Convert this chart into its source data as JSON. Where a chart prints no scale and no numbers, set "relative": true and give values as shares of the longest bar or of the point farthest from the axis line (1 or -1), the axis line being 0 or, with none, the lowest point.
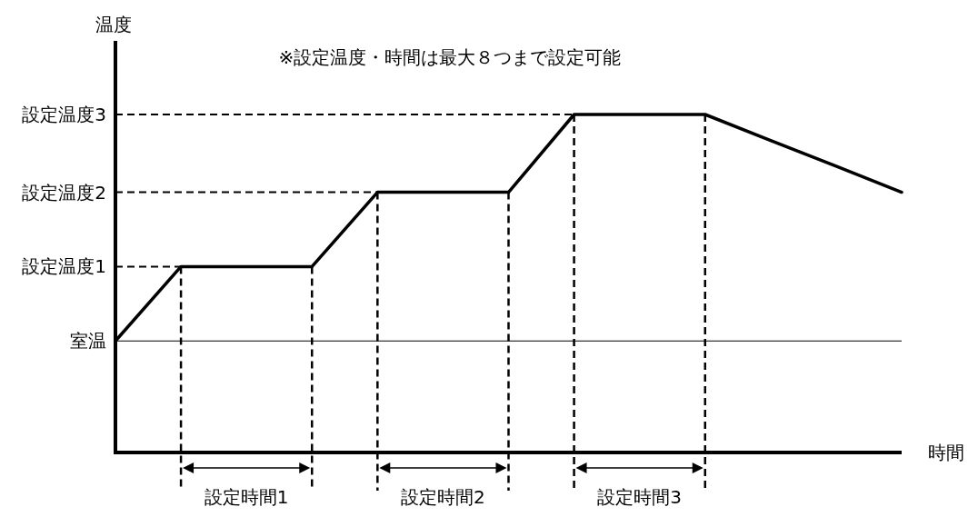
{
  "chart_data": {
    "type": "line",
    "relative": true,
    "xlabel": "時間",
    "ylabel": "温度",
    "grid": true,
    "annotations": [
      "※設定温度・時間は最大８つまで設定可能",
      "設定時間1",
      "設定時間2",
      "設定時間3"
    ],
    "categories": [
      null,
      null,
      null,
      null,
      null,
      null,
      null,
      null,
      null,
      null,
      null,
      null,
      null
    ],
    "values": [
      0.33,
      0.55,
      0.55,
      0.55,
      0.77,
      0.77,
      0.77,
      1,
      1,
      1,
      0.923,
      0.847,
      0.77
    ],
    "color": "#000000",
    "ref_lines": [
      {
        "axis": "y",
        "value": 0.33,
        "label": "室温",
        "line_style": "solid"
      },
      {
        "axis": "y",
        "value": 0.55,
        "label": "設定温度1",
        "line_style": "dashed"
      },
      {
        "axis": "y",
        "value": 0.77,
        "label": "設定温度2",
        "line_style": "dashed"
      },
      {
        "axis": "y",
        "value": 1,
        "label": "設定温度3",
        "line_style": "dashed"
      }
    ]
  }
}
